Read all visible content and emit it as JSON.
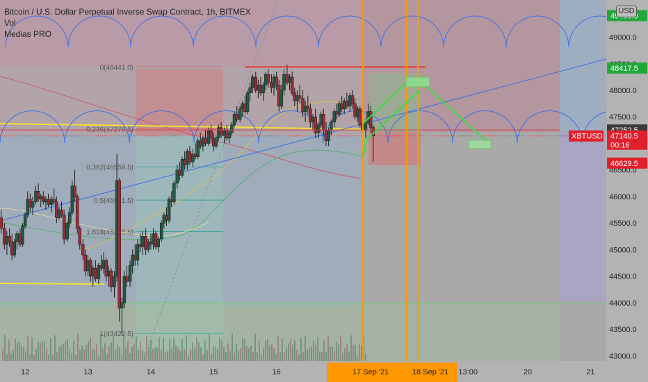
{
  "legend": {
    "title": "Bitcoin / U.S. Dollar Perpetual Inverse Swap Contract, 1h, BITMEX",
    "vol_label": "Vol",
    "indicator_label": "Medias PRO"
  },
  "currency_badge": "USD",
  "colors": {
    "background": "#ababab",
    "bull_candle": "#1f5a44",
    "bear_candle": "#9c2b36",
    "trendline": "#3a6fe8",
    "yellow_line": "#f2e033",
    "resistance": "#e53935",
    "projection": "#3ddc3d",
    "time_marker": "#ff9800",
    "price_up_badge": "#22a83a",
    "price_down_badge": "#e0202c",
    "current_badge": "#e0202c",
    "gray_badge": "#3a3a3a"
  },
  "chart_data": {
    "type": "candlestick",
    "symbol": "XBTUSD",
    "interval": "1h",
    "y_range": [
      42900,
      49700
    ],
    "y_ticks": [
      {
        "value": 49000,
        "label": "49000.0"
      },
      {
        "value": 48500,
        "label": "48500.0"
      },
      {
        "value": 48000,
        "label": "48000.0"
      },
      {
        "value": 47500,
        "label": "47500.0"
      },
      {
        "value": 46500,
        "label": "46500.0"
      },
      {
        "value": 46000,
        "label": "46000.0"
      },
      {
        "value": 45500,
        "label": "45500.0"
      },
      {
        "value": 45000,
        "label": "45000.0"
      },
      {
        "value": 44500,
        "label": "44500.0"
      },
      {
        "value": 44000,
        "label": "44000.0"
      },
      {
        "value": 43500,
        "label": "43500.0"
      },
      {
        "value": 43000,
        "label": "43000.0"
      }
    ],
    "x_range": [
      11.6,
      21.25
    ],
    "x_ticks": [
      {
        "value": 12,
        "label": "12"
      },
      {
        "value": 13,
        "label": "13"
      },
      {
        "value": 14,
        "label": "14"
      },
      {
        "value": 15,
        "label": "15"
      },
      {
        "value": 16,
        "label": "16"
      },
      {
        "value": 20,
        "label": "20"
      },
      {
        "value": 21,
        "label": "21"
      }
    ],
    "x_highlight_labels": [
      {
        "value": 17.5,
        "label": "17 Sep '21"
      },
      {
        "value": 18.45,
        "label": "18 Sep '21"
      },
      {
        "value": 19.05,
        "label": "13:00"
      }
    ],
    "price_labels": [
      {
        "value": 49406.0,
        "label": "49406.0",
        "style": "up"
      },
      {
        "value": 48417.5,
        "label": "48417.5",
        "style": "up"
      },
      {
        "value": 47252.5,
        "label": "47252.5",
        "style": "gray"
      },
      {
        "value": 47140.5,
        "label": "47140.5",
        "style": "current",
        "countdown": "00:16"
      },
      {
        "value": 46629.5,
        "label": "46629.5",
        "style": "down"
      }
    ],
    "symbol_tag": "XBTUSD",
    "fib_levels": [
      {
        "value": 48441.0,
        "label": "0(48441.0)"
      },
      {
        "value": 47276.5,
        "label": "0.236(47276.5)"
      },
      {
        "value": 46558.5,
        "label": "0.382(46558.5)"
      },
      {
        "value": 45931.5,
        "label": "0.5(45931.5)"
      },
      {
        "value": 45339.5,
        "label": "1.618(45339.5)"
      },
      {
        "value": 43422.5,
        "label": "1(43422.5)"
      }
    ],
    "resistance_level": 48440,
    "candles": [
      {
        "t": 11.62,
        "o": 45600,
        "h": 45750,
        "l": 45300,
        "c": 45400
      },
      {
        "t": 11.67,
        "o": 45400,
        "h": 45500,
        "l": 45000,
        "c": 45100
      },
      {
        "t": 11.71,
        "o": 45100,
        "h": 45350,
        "l": 44900,
        "c": 45250
      },
      {
        "t": 11.75,
        "o": 45250,
        "h": 45400,
        "l": 45050,
        "c": 45150
      },
      {
        "t": 11.79,
        "o": 45150,
        "h": 45300,
        "l": 44800,
        "c": 44900
      },
      {
        "t": 11.83,
        "o": 44900,
        "h": 45200,
        "l": 44850,
        "c": 45150
      },
      {
        "t": 11.87,
        "o": 45150,
        "h": 45350,
        "l": 45000,
        "c": 45300
      },
      {
        "t": 11.92,
        "o": 45300,
        "h": 45400,
        "l": 45050,
        "c": 45100
      },
      {
        "t": 11.96,
        "o": 45100,
        "h": 45500,
        "l": 45050,
        "c": 45450
      },
      {
        "t": 12.0,
        "o": 45450,
        "h": 45700,
        "l": 45400,
        "c": 45650
      },
      {
        "t": 12.04,
        "o": 45650,
        "h": 46100,
        "l": 45600,
        "c": 45950
      },
      {
        "t": 12.08,
        "o": 45950,
        "h": 46050,
        "l": 45700,
        "c": 45800
      },
      {
        "t": 12.12,
        "o": 45800,
        "h": 46000,
        "l": 45650,
        "c": 45900
      },
      {
        "t": 12.17,
        "o": 45900,
        "h": 46200,
        "l": 45850,
        "c": 46100
      },
      {
        "t": 12.21,
        "o": 46100,
        "h": 46250,
        "l": 45900,
        "c": 45950
      },
      {
        "t": 12.25,
        "o": 45950,
        "h": 46050,
        "l": 45800,
        "c": 46000
      },
      {
        "t": 12.29,
        "o": 46000,
        "h": 46100,
        "l": 45850,
        "c": 45900
      },
      {
        "t": 12.33,
        "o": 45900,
        "h": 46000,
        "l": 45750,
        "c": 45950
      },
      {
        "t": 12.37,
        "o": 45950,
        "h": 46050,
        "l": 45800,
        "c": 45850
      },
      {
        "t": 12.42,
        "o": 45850,
        "h": 46000,
        "l": 45700,
        "c": 45950
      },
      {
        "t": 12.46,
        "o": 45950,
        "h": 46150,
        "l": 45850,
        "c": 45900
      },
      {
        "t": 12.5,
        "o": 45900,
        "h": 46000,
        "l": 45500,
        "c": 45600
      },
      {
        "t": 12.54,
        "o": 45600,
        "h": 45800,
        "l": 45550,
        "c": 45750
      },
      {
        "t": 12.58,
        "o": 45750,
        "h": 45900,
        "l": 45600,
        "c": 45650
      },
      {
        "t": 12.62,
        "o": 45650,
        "h": 45750,
        "l": 45100,
        "c": 45200
      },
      {
        "t": 12.67,
        "o": 45200,
        "h": 45550,
        "l": 45150,
        "c": 45500
      },
      {
        "t": 12.71,
        "o": 45500,
        "h": 45800,
        "l": 45400,
        "c": 45700
      },
      {
        "t": 12.75,
        "o": 45700,
        "h": 46300,
        "l": 45650,
        "c": 46200
      },
      {
        "t": 12.79,
        "o": 46200,
        "h": 46500,
        "l": 45900,
        "c": 46000
      },
      {
        "t": 12.83,
        "o": 46000,
        "h": 46050,
        "l": 45300,
        "c": 45400
      },
      {
        "t": 12.87,
        "o": 45400,
        "h": 45450,
        "l": 45000,
        "c": 45100
      },
      {
        "t": 12.92,
        "o": 45100,
        "h": 45200,
        "l": 44800,
        "c": 44900
      },
      {
        "t": 12.96,
        "o": 44900,
        "h": 45000,
        "l": 44500,
        "c": 44600
      },
      {
        "t": 13.0,
        "o": 44600,
        "h": 44900,
        "l": 44500,
        "c": 44800
      },
      {
        "t": 13.04,
        "o": 44800,
        "h": 44850,
        "l": 44400,
        "c": 44500
      },
      {
        "t": 13.08,
        "o": 44500,
        "h": 44700,
        "l": 44300,
        "c": 44650
      },
      {
        "t": 13.12,
        "o": 44650,
        "h": 44800,
        "l": 44400,
        "c": 44450
      },
      {
        "t": 13.17,
        "o": 44450,
        "h": 44750,
        "l": 44350,
        "c": 44700
      },
      {
        "t": 13.21,
        "o": 44700,
        "h": 44900,
        "l": 44600,
        "c": 44650
      },
      {
        "t": 13.25,
        "o": 44650,
        "h": 44950,
        "l": 44550,
        "c": 44800
      },
      {
        "t": 13.29,
        "o": 44800,
        "h": 44850,
        "l": 44400,
        "c": 44500
      },
      {
        "t": 13.33,
        "o": 44500,
        "h": 44700,
        "l": 44300,
        "c": 44600
      },
      {
        "t": 13.37,
        "o": 44600,
        "h": 44650,
        "l": 44200,
        "c": 44300
      },
      {
        "t": 13.42,
        "o": 44300,
        "h": 44600,
        "l": 44100,
        "c": 44500
      },
      {
        "t": 13.46,
        "o": 44500,
        "h": 46800,
        "l": 44400,
        "c": 46300
      },
      {
        "t": 13.5,
        "o": 46300,
        "h": 46350,
        "l": 43650,
        "c": 43900
      },
      {
        "t": 13.54,
        "o": 43900,
        "h": 44100,
        "l": 43400,
        "c": 44000
      },
      {
        "t": 13.58,
        "o": 44000,
        "h": 44600,
        "l": 43900,
        "c": 44500
      },
      {
        "t": 13.62,
        "o": 44500,
        "h": 44700,
        "l": 44300,
        "c": 44400
      },
      {
        "t": 13.67,
        "o": 44400,
        "h": 44800,
        "l": 44300,
        "c": 44700
      },
      {
        "t": 13.71,
        "o": 44700,
        "h": 45000,
        "l": 44550,
        "c": 44900
      },
      {
        "t": 13.75,
        "o": 44900,
        "h": 45100,
        "l": 44700,
        "c": 44800
      },
      {
        "t": 13.79,
        "o": 44800,
        "h": 45200,
        "l": 44700,
        "c": 45100
      },
      {
        "t": 13.83,
        "o": 45100,
        "h": 45300,
        "l": 44950,
        "c": 45050
      },
      {
        "t": 13.87,
        "o": 45050,
        "h": 45350,
        "l": 44900,
        "c": 45250
      },
      {
        "t": 13.92,
        "o": 45250,
        "h": 45400,
        "l": 44900,
        "c": 45000
      },
      {
        "t": 13.96,
        "o": 45000,
        "h": 45200,
        "l": 44950,
        "c": 45150
      },
      {
        "t": 14.0,
        "o": 45150,
        "h": 45300,
        "l": 45000,
        "c": 45100
      },
      {
        "t": 14.04,
        "o": 45100,
        "h": 45400,
        "l": 45000,
        "c": 45300
      },
      {
        "t": 14.08,
        "o": 45300,
        "h": 45350,
        "l": 45000,
        "c": 45050
      },
      {
        "t": 14.12,
        "o": 45050,
        "h": 45250,
        "l": 44950,
        "c": 45200
      },
      {
        "t": 14.17,
        "o": 45200,
        "h": 45550,
        "l": 45150,
        "c": 45500
      },
      {
        "t": 14.21,
        "o": 45500,
        "h": 45700,
        "l": 45400,
        "c": 45650
      },
      {
        "t": 14.25,
        "o": 45650,
        "h": 45800,
        "l": 45450,
        "c": 45550
      },
      {
        "t": 14.29,
        "o": 45550,
        "h": 46000,
        "l": 45500,
        "c": 45950
      },
      {
        "t": 14.33,
        "o": 45950,
        "h": 46100,
        "l": 45800,
        "c": 45900
      },
      {
        "t": 14.37,
        "o": 45900,
        "h": 46300,
        "l": 45850,
        "c": 46250
      },
      {
        "t": 14.42,
        "o": 46250,
        "h": 46600,
        "l": 46150,
        "c": 46500
      },
      {
        "t": 14.46,
        "o": 46500,
        "h": 46650,
        "l": 46300,
        "c": 46400
      },
      {
        "t": 14.5,
        "o": 46400,
        "h": 46750,
        "l": 46350,
        "c": 46700
      },
      {
        "t": 14.54,
        "o": 46700,
        "h": 46850,
        "l": 46500,
        "c": 46600
      },
      {
        "t": 14.58,
        "o": 46600,
        "h": 46900,
        "l": 46500,
        "c": 46850
      },
      {
        "t": 14.62,
        "o": 46850,
        "h": 46950,
        "l": 46600,
        "c": 46650
      },
      {
        "t": 14.67,
        "o": 46650,
        "h": 46900,
        "l": 46550,
        "c": 46800
      },
      {
        "t": 14.71,
        "o": 46800,
        "h": 47000,
        "l": 46700,
        "c": 46750
      },
      {
        "t": 14.75,
        "o": 46750,
        "h": 47100,
        "l": 46700,
        "c": 47050
      },
      {
        "t": 14.79,
        "o": 47050,
        "h": 47200,
        "l": 46900,
        "c": 46950
      },
      {
        "t": 14.83,
        "o": 46950,
        "h": 47150,
        "l": 46850,
        "c": 47100
      },
      {
        "t": 14.87,
        "o": 47100,
        "h": 47250,
        "l": 46950,
        "c": 47000
      },
      {
        "t": 14.92,
        "o": 47000,
        "h": 47300,
        "l": 46950,
        "c": 47250
      },
      {
        "t": 14.96,
        "o": 47250,
        "h": 47350,
        "l": 47000,
        "c": 47100
      },
      {
        "t": 15.0,
        "o": 47100,
        "h": 47200,
        "l": 46850,
        "c": 46950
      },
      {
        "t": 15.04,
        "o": 46950,
        "h": 47150,
        "l": 46900,
        "c": 47100
      },
      {
        "t": 15.08,
        "o": 47100,
        "h": 47350,
        "l": 47050,
        "c": 47300
      },
      {
        "t": 15.12,
        "o": 47300,
        "h": 47400,
        "l": 47100,
        "c": 47150
      },
      {
        "t": 15.17,
        "o": 47150,
        "h": 47300,
        "l": 47000,
        "c": 47250
      },
      {
        "t": 15.21,
        "o": 47250,
        "h": 47350,
        "l": 47050,
        "c": 47100
      },
      {
        "t": 15.25,
        "o": 47100,
        "h": 47250,
        "l": 47000,
        "c": 47200
      },
      {
        "t": 15.29,
        "o": 47200,
        "h": 47400,
        "l": 47150,
        "c": 47350
      },
      {
        "t": 15.33,
        "o": 47350,
        "h": 47600,
        "l": 47300,
        "c": 47550
      },
      {
        "t": 15.37,
        "o": 47550,
        "h": 47700,
        "l": 47400,
        "c": 47450
      },
      {
        "t": 15.42,
        "o": 47450,
        "h": 47700,
        "l": 47400,
        "c": 47650
      },
      {
        "t": 15.46,
        "o": 47650,
        "h": 47800,
        "l": 47500,
        "c": 47750
      },
      {
        "t": 15.5,
        "o": 47750,
        "h": 47900,
        "l": 47550,
        "c": 47600
      },
      {
        "t": 15.54,
        "o": 47600,
        "h": 48000,
        "l": 47550,
        "c": 47950
      },
      {
        "t": 15.58,
        "o": 47950,
        "h": 48150,
        "l": 47800,
        "c": 48050
      },
      {
        "t": 15.62,
        "o": 48050,
        "h": 48300,
        "l": 47950,
        "c": 48250
      },
      {
        "t": 15.67,
        "o": 48250,
        "h": 48350,
        "l": 47950,
        "c": 48000
      },
      {
        "t": 15.71,
        "o": 48000,
        "h": 48200,
        "l": 47850,
        "c": 48100
      },
      {
        "t": 15.75,
        "o": 48100,
        "h": 48250,
        "l": 47900,
        "c": 47950
      },
      {
        "t": 15.79,
        "o": 47950,
        "h": 48150,
        "l": 47800,
        "c": 48100
      },
      {
        "t": 15.83,
        "o": 48100,
        "h": 48350,
        "l": 48000,
        "c": 48300
      },
      {
        "t": 15.87,
        "o": 48300,
        "h": 48400,
        "l": 48050,
        "c": 48150
      },
      {
        "t": 15.92,
        "o": 48150,
        "h": 48300,
        "l": 47950,
        "c": 48050
      },
      {
        "t": 15.96,
        "o": 48050,
        "h": 48300,
        "l": 47900,
        "c": 48250
      },
      {
        "t": 16.0,
        "o": 48250,
        "h": 48350,
        "l": 48000,
        "c": 48100
      },
      {
        "t": 16.04,
        "o": 48100,
        "h": 48200,
        "l": 47600,
        "c": 47700
      },
      {
        "t": 16.08,
        "o": 47700,
        "h": 48100,
        "l": 47650,
        "c": 48000
      },
      {
        "t": 16.12,
        "o": 48000,
        "h": 48400,
        "l": 47900,
        "c": 48300
      },
      {
        "t": 16.17,
        "o": 48300,
        "h": 48480,
        "l": 48100,
        "c": 48150
      },
      {
        "t": 16.21,
        "o": 48150,
        "h": 48300,
        "l": 48000,
        "c": 48250
      },
      {
        "t": 16.25,
        "o": 48250,
        "h": 48350,
        "l": 47900,
        "c": 47950
      },
      {
        "t": 16.29,
        "o": 47950,
        "h": 48050,
        "l": 47700,
        "c": 47800
      },
      {
        "t": 16.33,
        "o": 47800,
        "h": 48000,
        "l": 47600,
        "c": 47900
      },
      {
        "t": 16.37,
        "o": 47900,
        "h": 48100,
        "l": 47750,
        "c": 47850
      },
      {
        "t": 16.42,
        "o": 47850,
        "h": 48000,
        "l": 47500,
        "c": 47600
      },
      {
        "t": 16.46,
        "o": 47600,
        "h": 47800,
        "l": 47400,
        "c": 47700
      },
      {
        "t": 16.5,
        "o": 47700,
        "h": 47900,
        "l": 47550,
        "c": 47650
      },
      {
        "t": 16.54,
        "o": 47650,
        "h": 47750,
        "l": 47300,
        "c": 47400
      },
      {
        "t": 16.58,
        "o": 47400,
        "h": 47550,
        "l": 47250,
        "c": 47500
      },
      {
        "t": 16.62,
        "o": 47500,
        "h": 47650,
        "l": 47100,
        "c": 47200
      },
      {
        "t": 16.67,
        "o": 47200,
        "h": 47400,
        "l": 47100,
        "c": 47350
      },
      {
        "t": 16.71,
        "o": 47350,
        "h": 47600,
        "l": 47300,
        "c": 47550
      },
      {
        "t": 16.75,
        "o": 47550,
        "h": 47650,
        "l": 47150,
        "c": 47250
      },
      {
        "t": 16.79,
        "o": 47250,
        "h": 47400,
        "l": 46950,
        "c": 47050
      },
      {
        "t": 16.83,
        "o": 47050,
        "h": 47300,
        "l": 46950,
        "c": 47250
      },
      {
        "t": 16.87,
        "o": 47250,
        "h": 47450,
        "l": 47150,
        "c": 47400
      },
      {
        "t": 16.92,
        "o": 47400,
        "h": 47650,
        "l": 47300,
        "c": 47600
      },
      {
        "t": 16.96,
        "o": 47600,
        "h": 47750,
        "l": 47450,
        "c": 47550
      },
      {
        "t": 17.0,
        "o": 47550,
        "h": 47800,
        "l": 47500,
        "c": 47750
      },
      {
        "t": 17.04,
        "o": 47750,
        "h": 47900,
        "l": 47600,
        "c": 47650
      },
      {
        "t": 17.08,
        "o": 47650,
        "h": 47850,
        "l": 47550,
        "c": 47800
      },
      {
        "t": 17.12,
        "o": 47800,
        "h": 47950,
        "l": 47650,
        "c": 47700
      },
      {
        "t": 17.17,
        "o": 47700,
        "h": 47950,
        "l": 47600,
        "c": 47900
      },
      {
        "t": 17.21,
        "o": 47900,
        "h": 48000,
        "l": 47650,
        "c": 47750
      },
      {
        "t": 17.25,
        "o": 47750,
        "h": 47850,
        "l": 47450,
        "c": 47500
      },
      {
        "t": 17.29,
        "o": 47500,
        "h": 47700,
        "l": 47400,
        "c": 47650
      },
      {
        "t": 17.33,
        "o": 47650,
        "h": 47700,
        "l": 47300,
        "c": 47350
      },
      {
        "t": 17.37,
        "o": 47350,
        "h": 47500,
        "l": 47150,
        "c": 47250
      },
      {
        "t": 17.42,
        "o": 47250,
        "h": 47450,
        "l": 47100,
        "c": 47400
      },
      {
        "t": 17.46,
        "o": 47400,
        "h": 47750,
        "l": 47350,
        "c": 47600
      },
      {
        "t": 17.5,
        "o": 47600,
        "h": 47700,
        "l": 47200,
        "c": 47300
      },
      {
        "t": 17.54,
        "o": 47300,
        "h": 47350,
        "l": 46650,
        "c": 47140
      }
    ],
    "volume_bars": "decorative"
  }
}
